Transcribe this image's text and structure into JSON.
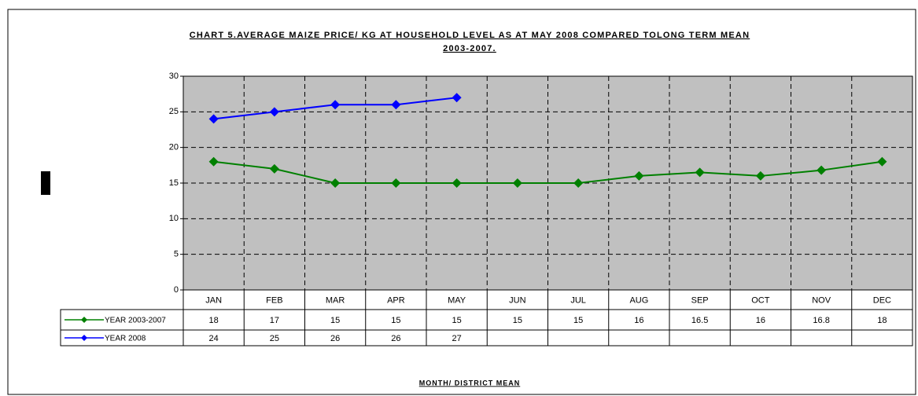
{
  "chart_data": {
    "type": "line",
    "title": [
      "CHART 5.AVERAGE MAIZE PRICE/ KG AT HOUSEHOLD LEVEL AS AT MAY 2008 COMPARED TOLONG TERM MEAN",
      "2003-2007."
    ],
    "x_label": "MONTH/ DISTRICT MEAN",
    "categories": [
      "JAN",
      "FEB",
      "MAR",
      "APR",
      "MAY",
      "JUN",
      "JUL",
      "AUG",
      "SEP",
      "OCT",
      "NOV",
      "DEC"
    ],
    "series": [
      {
        "name": "YEAR 2003-2007",
        "color": "#008000",
        "values": [
          18,
          17,
          15,
          15,
          15,
          15,
          15,
          16,
          16.5,
          16,
          16.8,
          18
        ]
      },
      {
        "name": "YEAR 2008",
        "color": "#0000ff",
        "values": [
          24,
          25,
          26,
          26,
          27,
          null,
          null,
          null,
          null,
          null,
          null,
          null
        ]
      }
    ],
    "ylim": [
      0,
      30
    ],
    "yticks": [
      0,
      5,
      10,
      15,
      20,
      25,
      30
    ],
    "grid": true
  }
}
